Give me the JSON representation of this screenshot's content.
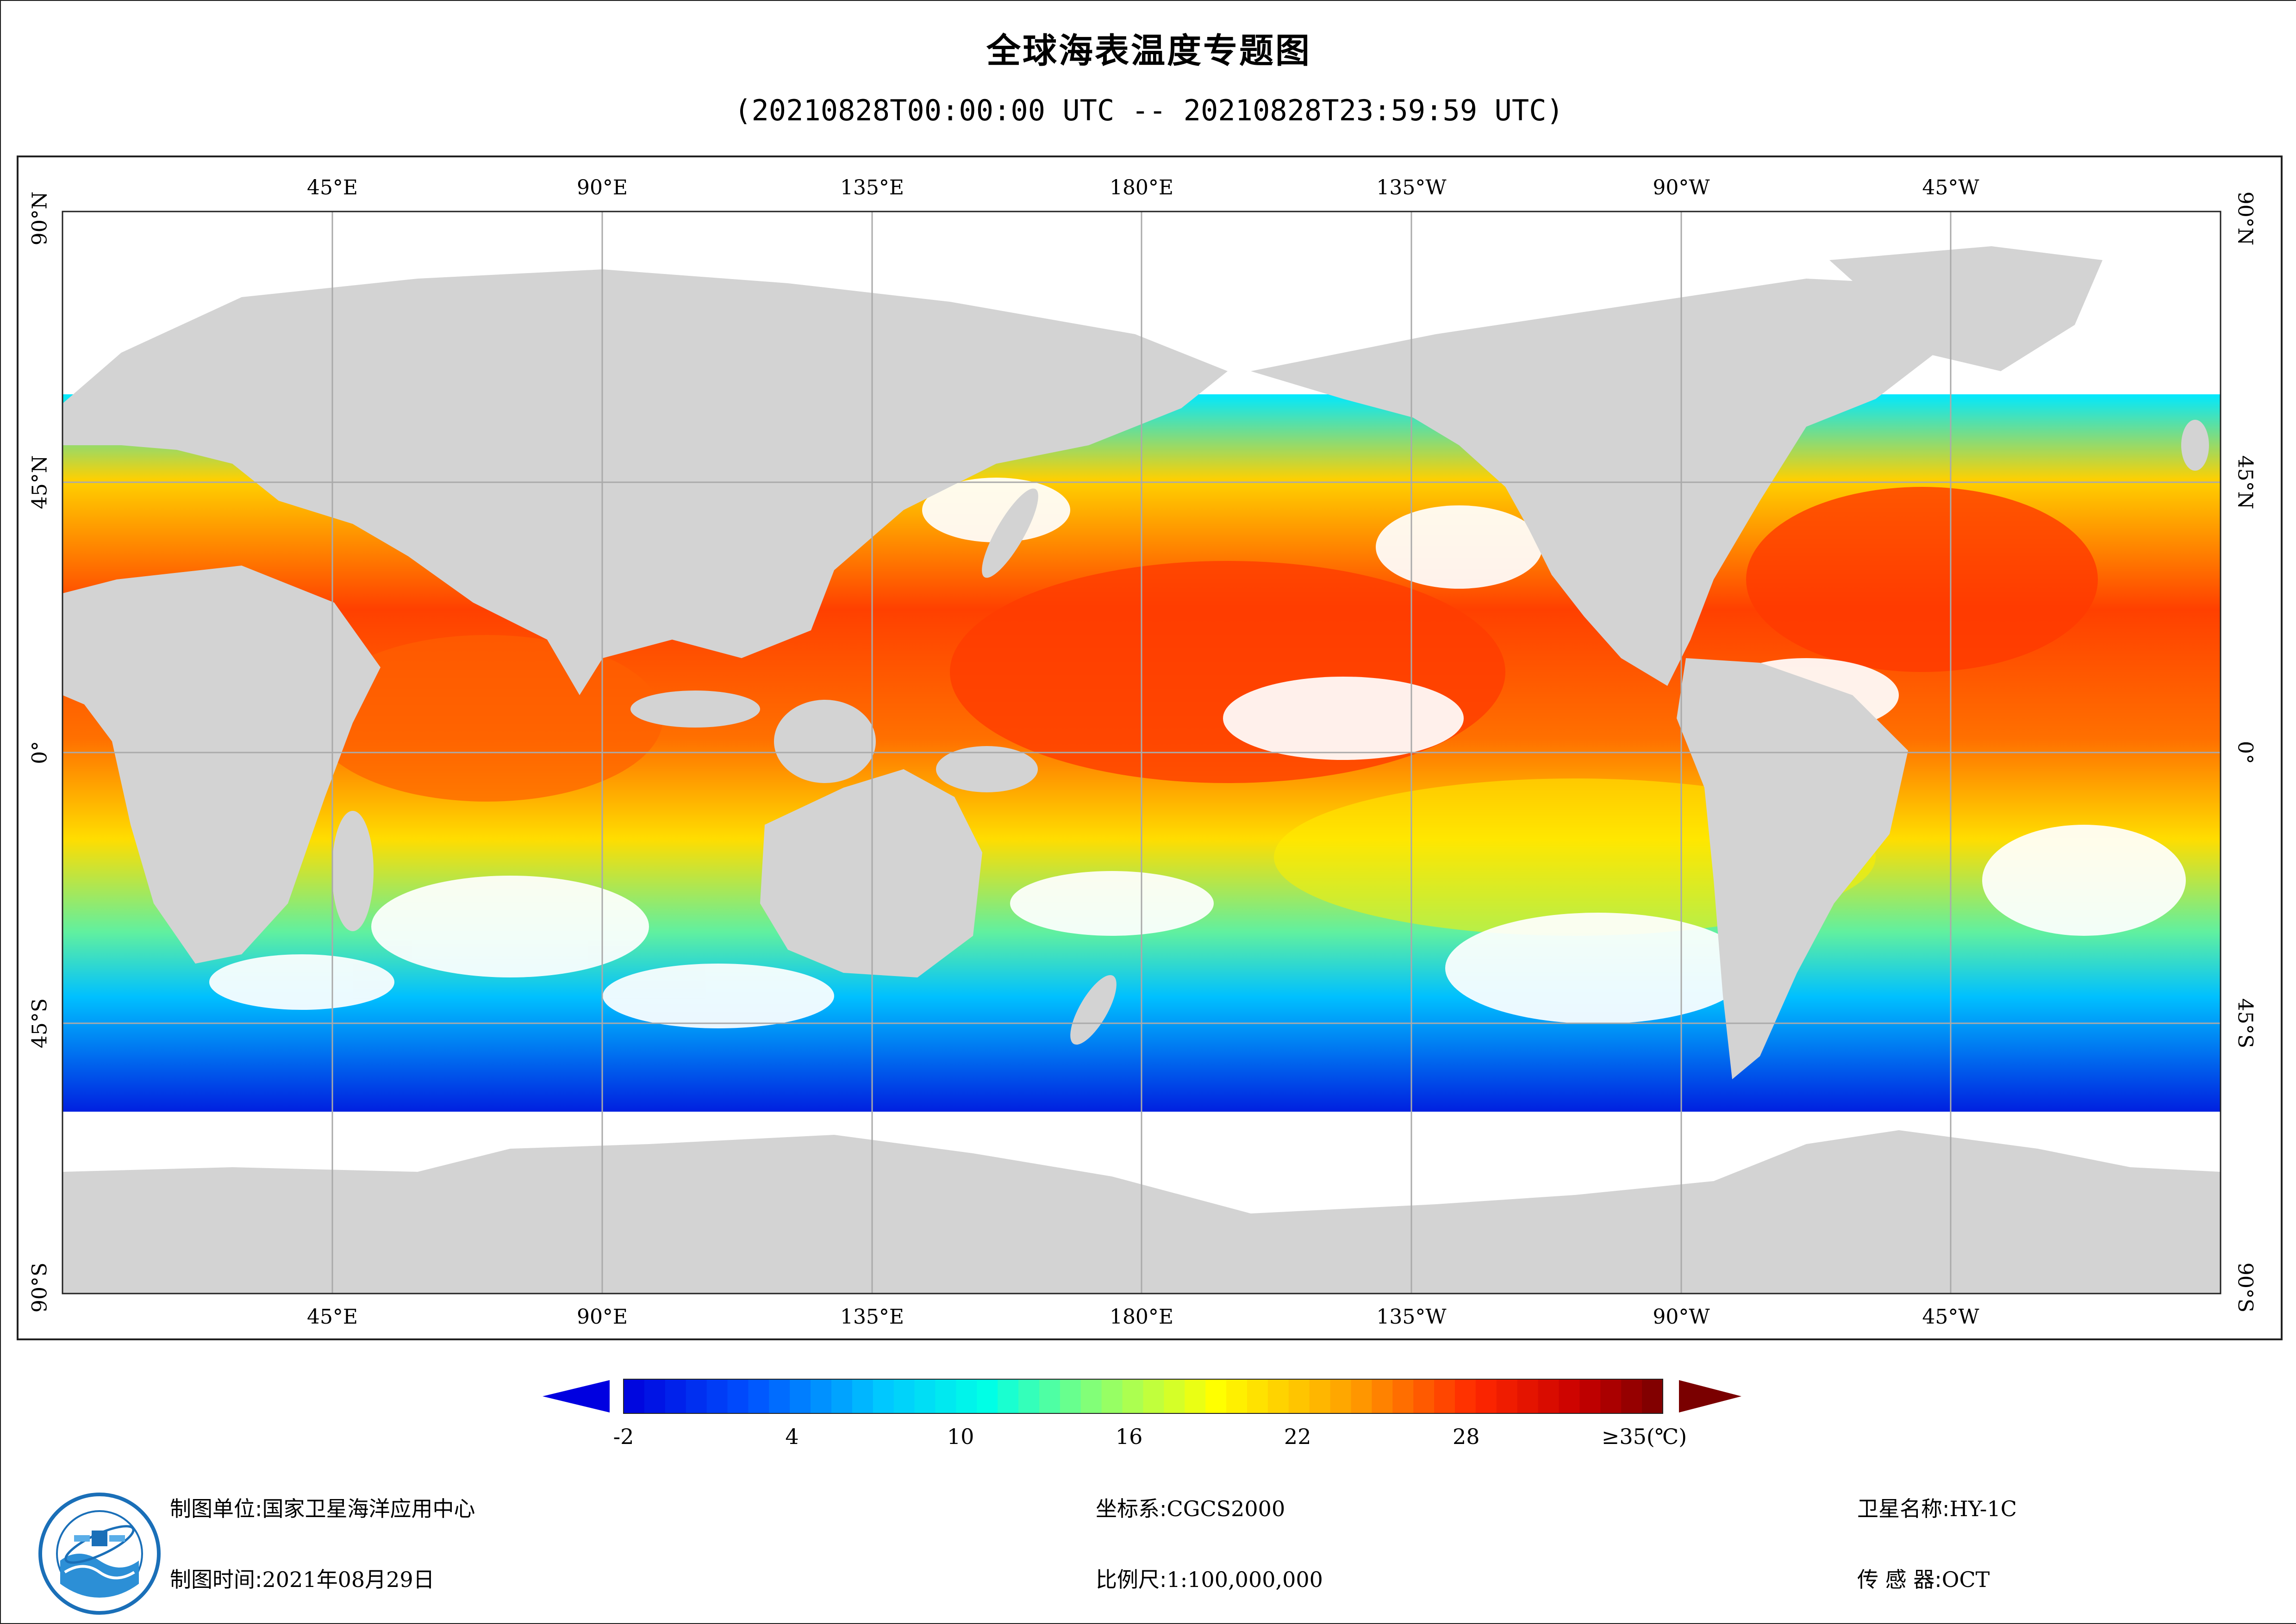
{
  "title": "全球海表温度专题图",
  "subtitle": "(20210828T00:00:00 UTC -- 20210828T23:59:59 UTC)",
  "map": {
    "longitude_labels": [
      "45°E",
      "90°E",
      "135°E",
      "180°E",
      "135°W",
      "90°W",
      "45°W"
    ],
    "latitude_labels": [
      "90°N",
      "45°N",
      "0°",
      "45°S",
      "90°S"
    ],
    "colors": {
      "land": "#d3d3d3",
      "cloud_no_data": "#ffffff",
      "grid": "#aaaaaa"
    }
  },
  "legend": {
    "ticks": [
      "-2",
      "4",
      "10",
      "16",
      "22",
      "28",
      "≥35(℃)"
    ],
    "tick_values": [
      -2,
      4,
      10,
      16,
      22,
      28,
      35
    ],
    "min_value": -2,
    "max_value": 35,
    "under_color": "#0000e0",
    "over_color": "#7a0000"
  },
  "footer": {
    "producer_label": "制图单位:",
    "producer_value": "国家卫星海洋应用中心",
    "date_label": "制图时间:",
    "date_value": "2021年08月29日",
    "crs_label": "坐标系:",
    "crs_value": "CGCS2000",
    "scale_label": "比例尺:",
    "scale_value": "1:100,000,000",
    "satellite_label": "卫星名称:",
    "satellite_value": "HY-1C",
    "sensor_label": "传 感 器:",
    "sensor_value": "OCT"
  }
}
